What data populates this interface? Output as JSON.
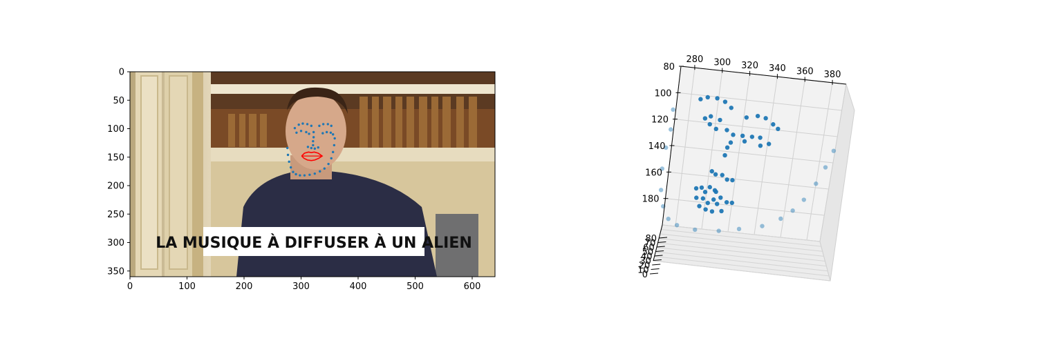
{
  "chart_data": [
    {
      "type": "scatter",
      "title": "",
      "xlabel": "",
      "ylabel": "",
      "xlim": [
        0,
        640
      ],
      "ylim": [
        360,
        0
      ],
      "xticks": [
        0,
        100,
        200,
        300,
        400,
        500,
        600
      ],
      "yticks": [
        0,
        50,
        100,
        150,
        200,
        250,
        300,
        350
      ],
      "background": "photo frame of a man in a navy t-shirt in front of a bookshelf",
      "caption": "LA MUSIQUE À DIFFUSER À UN ALIEN",
      "series": [
        {
          "role": "face-outline-points",
          "color": "#1f77b4",
          "x": [
            276,
            277,
            279,
            282,
            286,
            291,
            298,
            306,
            315,
            324,
            333,
            341,
            348,
            353,
            356,
            358,
            359
          ],
          "y": [
            134,
            146,
            158,
            168,
            176,
            180,
            182,
            182,
            181,
            179,
            175,
            170,
            162,
            152,
            141,
            129,
            117
          ]
        },
        {
          "role": "brow-eye-points",
          "color": "#1f77b4",
          "x": [
            289,
            296,
            303,
            311,
            318,
            332,
            339,
            347,
            353,
            292,
            300,
            309,
            314,
            338,
            345,
            352,
            356
          ],
          "y": [
            99,
            93,
            91,
            92,
            95,
            95,
            92,
            92,
            95,
            107,
            104,
            106,
            109,
            108,
            106,
            107,
            110
          ]
        },
        {
          "role": "nose-points",
          "color": "#1f77b4",
          "x": [
            322,
            322,
            321,
            321,
            312,
            318,
            324,
            330
          ],
          "y": [
            106,
            115,
            122,
            129,
            132,
            134,
            135,
            133
          ]
        },
        {
          "role": "lips-outline",
          "color": "#ff0000",
          "x": [
            301,
            306,
            313,
            318,
            323,
            330,
            337,
            331,
            324,
            318,
            311,
            305,
            301
          ],
          "y": [
            148,
            143,
            141,
            142,
            141,
            143,
            148,
            152,
            155,
            156,
            155,
            152,
            148
          ]
        }
      ]
    },
    {
      "type": "scatter",
      "projection": "3d",
      "title": "",
      "xlabel": "",
      "ylabel": "",
      "zlabel": "",
      "xticks": [
        280,
        300,
        320,
        340,
        360,
        380
      ],
      "yticks": [
        80,
        100,
        120,
        140,
        160,
        180
      ],
      "zticks": [
        0,
        10,
        20,
        30,
        40,
        50,
        60,
        70,
        80
      ],
      "color": "#1f77b4",
      "grid": true,
      "points_front": [
        [
          287,
          103
        ],
        [
          292,
          101
        ],
        [
          299,
          101
        ],
        [
          305,
          103
        ],
        [
          310,
          107
        ],
        [
          292,
          117
        ],
        [
          296,
          115
        ],
        [
          296,
          121
        ],
        [
          301,
          124
        ],
        [
          303,
          117
        ],
        [
          309,
          124
        ],
        [
          314,
          127
        ],
        [
          313,
          133
        ],
        [
          311,
          137
        ],
        [
          310,
          143
        ],
        [
          322,
          113
        ],
        [
          330,
          111
        ],
        [
          336,
          112
        ],
        [
          342,
          116
        ],
        [
          346,
          119
        ],
        [
          321,
          127
        ],
        [
          328,
          127
        ],
        [
          334,
          127
        ],
        [
          341,
          131
        ],
        [
          335,
          133
        ],
        [
          323,
          131
        ],
        [
          302,
          156
        ],
        [
          305,
          158
        ],
        [
          310,
          158
        ],
        [
          314,
          161
        ],
        [
          318,
          161
        ],
        [
          292,
          170
        ],
        [
          296,
          169
        ],
        [
          299,
          172
        ],
        [
          302,
          168
        ],
        [
          306,
          170
        ],
        [
          307,
          171
        ],
        [
          293,
          177
        ],
        [
          298,
          177
        ],
        [
          302,
          180
        ],
        [
          306,
          177
        ],
        [
          311,
          175
        ],
        [
          316,
          178
        ],
        [
          320,
          178
        ],
        [
          296,
          183
        ],
        [
          301,
          185
        ],
        [
          306,
          186
        ],
        [
          313,
          185
        ],
        [
          309,
          180
        ]
      ],
      "points_back": [
        [
          268,
          113
        ],
        [
          268,
          128
        ],
        [
          266,
          142
        ],
        [
          265,
          158
        ],
        [
          266,
          174
        ],
        [
          269,
          186
        ],
        [
          274,
          195
        ],
        [
          281,
          199
        ],
        [
          295,
          201
        ],
        [
          313,
          200
        ],
        [
          328,
          197
        ],
        [
          345,
          193
        ],
        [
          358,
          186
        ],
        [
          366,
          179
        ],
        [
          373,
          170
        ],
        [
          380,
          157
        ],
        [
          385,
          144
        ],
        [
          389,
          131
        ]
      ]
    }
  ]
}
